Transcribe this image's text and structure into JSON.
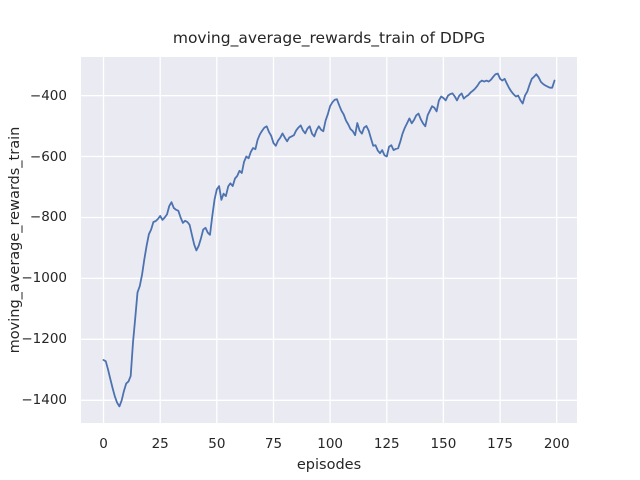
{
  "figure": {
    "background": "#ffffff"
  },
  "chart_data": {
    "type": "line",
    "title": "moving_average_rewards_train of DDPG",
    "xlabel": "episodes",
    "ylabel": "moving_average_rewards_train",
    "x_is_index": true,
    "x_range": [
      0,
      199
    ],
    "xlim": [
      -9.95,
      208.95
    ],
    "ylim": [
      -1474.6,
      -273.4
    ],
    "xticks": [
      0,
      25,
      50,
      75,
      100,
      125,
      150,
      175,
      200
    ],
    "yticks": [
      -1400,
      -1200,
      -1000,
      -800,
      -600,
      -400
    ],
    "grid": true,
    "legend": false,
    "style": {
      "line_color": "#4c72b0",
      "line_width": 1.8,
      "plot_bg": "#eaeaf2",
      "grid_color": "#ffffff",
      "text_color": "#262626"
    },
    "series": [
      {
        "name": "moving_average_rewards_train",
        "values": [
          -1268,
          -1272,
          -1300,
          -1330,
          -1360,
          -1388,
          -1408,
          -1420,
          -1400,
          -1370,
          -1345,
          -1338,
          -1320,
          -1210,
          -1128,
          -1046,
          -1025,
          -987,
          -938,
          -893,
          -855,
          -840,
          -815,
          -812,
          -805,
          -795,
          -808,
          -800,
          -790,
          -762,
          -750,
          -769,
          -775,
          -778,
          -800,
          -818,
          -811,
          -815,
          -824,
          -857,
          -889,
          -908,
          -893,
          -868,
          -840,
          -834,
          -850,
          -857,
          -795,
          -740,
          -708,
          -697,
          -742,
          -722,
          -730,
          -698,
          -688,
          -697,
          -672,
          -664,
          -647,
          -654,
          -618,
          -600,
          -606,
          -585,
          -572,
          -576,
          -545,
          -527,
          -515,
          -505,
          -501,
          -520,
          -532,
          -556,
          -565,
          -548,
          -538,
          -524,
          -538,
          -550,
          -538,
          -534,
          -530,
          -515,
          -505,
          -498,
          -514,
          -524,
          -508,
          -501,
          -525,
          -534,
          -514,
          -501,
          -512,
          -517,
          -482,
          -460,
          -435,
          -422,
          -414,
          -412,
          -432,
          -450,
          -462,
          -482,
          -495,
          -510,
          -517,
          -530,
          -490,
          -515,
          -525,
          -505,
          -500,
          -515,
          -540,
          -565,
          -563,
          -580,
          -589,
          -579,
          -596,
          -600,
          -568,
          -563,
          -579,
          -575,
          -573,
          -550,
          -524,
          -505,
          -490,
          -475,
          -491,
          -480,
          -465,
          -459,
          -478,
          -491,
          -501,
          -465,
          -450,
          -435,
          -440,
          -452,
          -416,
          -403,
          -408,
          -416,
          -400,
          -395,
          -393,
          -403,
          -416,
          -400,
          -393,
          -410,
          -403,
          -398,
          -390,
          -384,
          -377,
          -368,
          -356,
          -351,
          -354,
          -351,
          -354,
          -348,
          -338,
          -330,
          -328,
          -345,
          -351,
          -345,
          -361,
          -375,
          -387,
          -396,
          -403,
          -400,
          -416,
          -426,
          -400,
          -387,
          -365,
          -345,
          -338,
          -330,
          -340,
          -355,
          -362,
          -367,
          -371,
          -374,
          -374,
          -351
        ]
      }
    ]
  }
}
